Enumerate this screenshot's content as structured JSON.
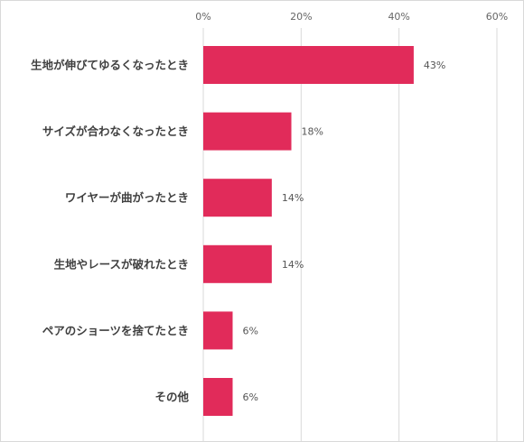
{
  "chart_data": {
    "type": "bar",
    "orientation": "horizontal",
    "title": "",
    "xlabel": "",
    "ylabel": "",
    "categories": [
      "生地が伸びてゆるくなったとき",
      "サイズが合わなくなったとき",
      "ワイヤーが曲がったとき",
      "生地やレースが破れたとき",
      "ペアのショーツを捨てたとき",
      "その他"
    ],
    "values": [
      43,
      18,
      14,
      14,
      6,
      6
    ],
    "value_labels": [
      "43%",
      "18%",
      "14%",
      "14%",
      "6%",
      "6%"
    ],
    "xlim": [
      0,
      60
    ],
    "ticks": [
      0,
      20,
      40,
      60
    ],
    "tick_labels": [
      "0%",
      "20%",
      "40%",
      "60%"
    ],
    "axis_position": "top",
    "grid": true,
    "legend": "none",
    "bar_color": "#e12b5a"
  }
}
